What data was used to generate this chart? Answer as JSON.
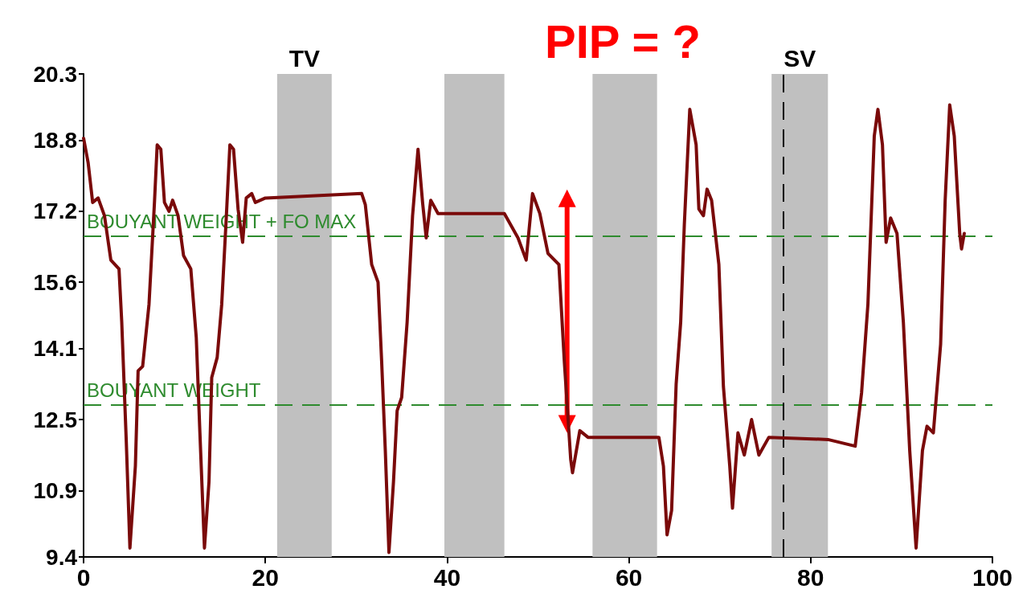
{
  "chart_data": {
    "type": "line",
    "annotations": [
      "PIP = ?"
    ],
    "x": [
      0,
      0.5,
      1.0,
      1.6,
      2.3,
      3.0,
      3.9,
      4.2,
      4.7,
      5.1,
      5.7,
      6.0,
      6.5,
      7.2,
      7.8,
      8.1,
      8.5,
      8.9,
      9.4,
      9.8,
      10.4,
      11.0,
      11.8,
      12.4,
      12.8,
      13.3,
      13.8,
      14.1,
      14.7,
      15.2,
      15.7,
      16.1,
      16.5,
      17.0,
      17.5,
      17.9,
      18.5,
      18.9,
      20.0,
      30.6,
      31.0,
      31.7,
      32.4,
      32.8,
      33.2,
      33.6,
      34.1,
      34.5,
      35.0,
      35.6,
      36.2,
      36.8,
      37.3,
      37.7,
      38.2,
      39.0,
      46.3,
      47.8,
      48.7,
      49.4,
      50.2,
      51.1,
      52.3,
      52.9,
      53.6,
      53.8,
      54.6,
      55.5,
      63.3,
      63.8,
      64.2,
      64.7,
      65.2,
      65.7,
      66.1,
      66.7,
      67.4,
      67.7,
      68.2,
      68.6,
      69.1,
      69.9,
      70.4,
      71.1,
      71.4,
      72.0,
      72.7,
      73.5,
      74.3,
      75.4,
      81.9,
      84.9,
      85.6,
      86.3,
      87.0,
      87.4,
      87.9,
      88.3,
      88.8,
      89.5,
      90.2,
      90.9,
      91.6,
      92.3,
      92.8,
      93.5,
      94.3,
      94.8,
      95.3,
      95.8,
      96.4,
      96.6,
      96.9
    ],
    "series": [
      {
        "color": "#7a0a0a",
        "values": [
          18.85,
          18.3,
          17.4,
          17.5,
          17.1,
          16.1,
          15.9,
          14.7,
          12.0,
          9.6,
          11.45,
          13.6,
          13.7,
          15.1,
          17.4,
          18.7,
          18.6,
          17.4,
          17.2,
          17.45,
          17.1,
          16.2,
          15.9,
          14.35,
          12.2,
          9.6,
          11.1,
          13.45,
          13.9,
          15.1,
          17.05,
          18.7,
          18.6,
          17.25,
          16.5,
          17.5,
          17.6,
          17.4,
          17.5,
          17.6,
          17.35,
          16.0,
          15.6,
          13.8,
          11.8,
          9.5,
          11.1,
          12.7,
          13.0,
          14.7,
          17.1,
          18.6,
          17.4,
          16.6,
          17.45,
          17.15,
          17.15,
          16.6,
          16.1,
          17.6,
          17.15,
          16.25,
          16.0,
          13.8,
          11.6,
          11.3,
          12.25,
          12.1,
          12.1,
          11.45,
          9.9,
          10.45,
          13.3,
          14.7,
          16.9,
          19.5,
          18.7,
          17.25,
          17.1,
          17.7,
          17.45,
          16.0,
          13.25,
          11.45,
          10.5,
          12.2,
          11.7,
          12.5,
          11.7,
          12.1,
          12.05,
          11.9,
          13.1,
          15.1,
          18.9,
          19.5,
          18.7,
          16.5,
          17.05,
          16.7,
          14.7,
          11.8,
          9.6,
          11.8,
          12.35,
          12.2,
          14.2,
          17.45,
          19.6,
          18.9,
          16.7,
          16.35,
          16.7
        ]
      }
    ],
    "xlim": [
      0,
      100
    ],
    "xticks": [
      0,
      20,
      40,
      60,
      80,
      100
    ],
    "ylim": [
      9.4,
      20.3
    ],
    "yticks": [
      9.4,
      10.9,
      12.5,
      14.1,
      15.6,
      17.2,
      18.8,
      20.3
    ],
    "ref_lines": [
      {
        "axis": "y",
        "value": 16.65,
        "label": "BOUYANT WEIGHT + FO MAX",
        "color": "#2e8b2e",
        "line_style": "dashed"
      },
      {
        "axis": "y",
        "value": 12.84,
        "label": "BOUYANT WEIGHT",
        "color": "#2e8b2e",
        "line_style": "dashed"
      },
      {
        "axis": "x",
        "value": 77,
        "label": null,
        "color": "#000000",
        "line_style": "dashed"
      }
    ],
    "bands": [
      {
        "axis": "x",
        "from": 21.3,
        "to": 27.3,
        "label": "TV",
        "color": "#c0c0c0"
      },
      {
        "axis": "x",
        "from": 39.7,
        "to": 46.3,
        "label": null,
        "color": "#c0c0c0"
      },
      {
        "axis": "x",
        "from": 56.0,
        "to": 63.1,
        "label": null,
        "color": "#c0c0c0"
      },
      {
        "axis": "x",
        "from": 75.7,
        "to": 81.9,
        "label": "SV",
        "color": "#c0c0c0"
      }
    ],
    "grid": false,
    "marker": "none",
    "line_style": "solid"
  }
}
